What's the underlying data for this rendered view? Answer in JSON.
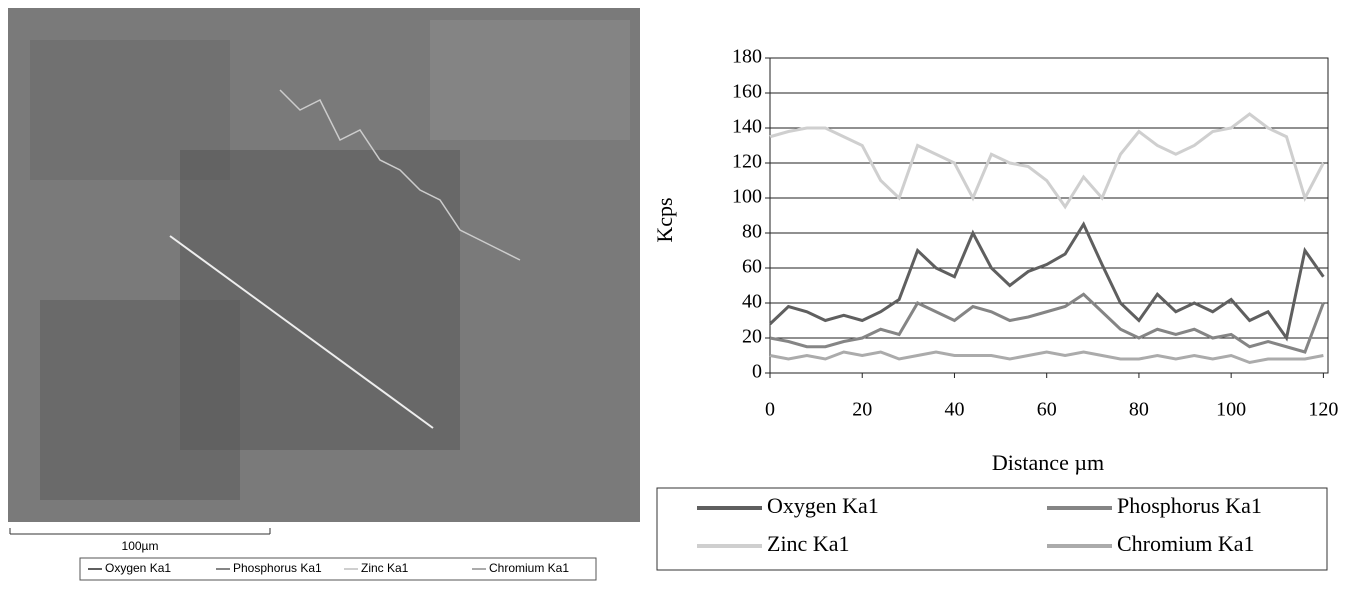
{
  "image": {
    "scale_label": "100µm",
    "legend": [
      "Oxygen Ka1",
      "Phosphorus Ka1",
      "Zinc Ka1",
      "Chromium Ka1"
    ]
  },
  "chart_data": {
    "type": "line",
    "ylabel": "Kcps",
    "xlabel": "Distance µm",
    "x": [
      0,
      4,
      8,
      12,
      16,
      20,
      24,
      28,
      32,
      36,
      40,
      44,
      48,
      52,
      56,
      60,
      64,
      68,
      72,
      76,
      80,
      84,
      88,
      92,
      96,
      100,
      104,
      108,
      112,
      116,
      120
    ],
    "series": [
      {
        "name": "Oxygen Ka1",
        "color": "#5f5f5f",
        "values": [
          28,
          38,
          35,
          30,
          33,
          30,
          35,
          42,
          70,
          60,
          55,
          80,
          60,
          50,
          58,
          62,
          68,
          85,
          62,
          40,
          30,
          45,
          35,
          40,
          35,
          42,
          30,
          35,
          20,
          70,
          55
        ]
      },
      {
        "name": "Phosphorus Ka1",
        "color": "#858585",
        "values": [
          20,
          18,
          15,
          15,
          18,
          20,
          25,
          22,
          40,
          35,
          30,
          38,
          35,
          30,
          32,
          35,
          38,
          45,
          35,
          25,
          20,
          25,
          22,
          25,
          20,
          22,
          15,
          18,
          15,
          12,
          40
        ]
      },
      {
        "name": "Zinc Ka1",
        "color": "#cfcfcf",
        "values": [
          135,
          138,
          140,
          140,
          135,
          130,
          110,
          100,
          130,
          125,
          120,
          100,
          125,
          120,
          118,
          110,
          95,
          112,
          100,
          125,
          138,
          130,
          125,
          130,
          138,
          140,
          148,
          140,
          135,
          100,
          120
        ]
      },
      {
        "name": "Chromium Ka1",
        "color": "#ababab",
        "values": [
          10,
          8,
          10,
          8,
          12,
          10,
          12,
          8,
          10,
          12,
          10,
          10,
          10,
          8,
          10,
          12,
          10,
          12,
          10,
          8,
          8,
          10,
          8,
          10,
          8,
          10,
          6,
          8,
          8,
          8,
          10
        ]
      }
    ],
    "xlim": [
      0,
      121
    ],
    "ylim": [
      0,
      180
    ],
    "xticks": [
      0,
      20,
      40,
      60,
      80,
      100,
      120
    ],
    "yticks": [
      0,
      20,
      40,
      60,
      80,
      100,
      120,
      140,
      160,
      180
    ],
    "grid": true
  }
}
